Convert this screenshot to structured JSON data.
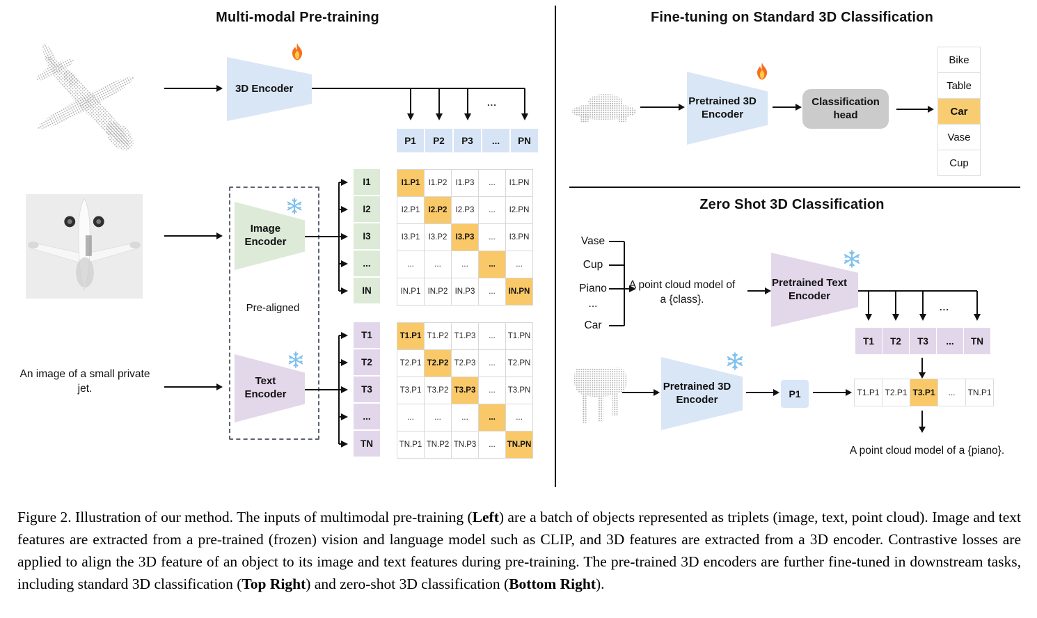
{
  "left": {
    "title": "Multi-modal Pre-training",
    "encoder_3d_label": "3D Encoder",
    "image_encoder_label": "Image Encoder",
    "text_encoder_label": "Text Encoder",
    "pre_aligned_label": "Pre-aligned",
    "image_caption": "An image of a small private jet.",
    "p_row": [
      "P1",
      "P2",
      "P3",
      "...",
      "PN"
    ],
    "p_row_ellipsis": "...",
    "i_col": [
      "I1",
      "I2",
      "I3",
      "...",
      "IN"
    ],
    "t_col": [
      "T1",
      "T2",
      "T3",
      "...",
      "TN"
    ],
    "image_matrix": [
      {
        "label": "I1.P1",
        "hl": true
      },
      {
        "label": "I1.P2"
      },
      {
        "label": "I1.P3"
      },
      {
        "label": "..."
      },
      {
        "label": "I1.PN"
      },
      {
        "label": "I2.P1"
      },
      {
        "label": "I2.P2",
        "hl": true
      },
      {
        "label": "I2.P3"
      },
      {
        "label": "..."
      },
      {
        "label": "I2.PN"
      },
      {
        "label": "I3.P1"
      },
      {
        "label": "I3.P2"
      },
      {
        "label": "I3.P3",
        "hl": true
      },
      {
        "label": "..."
      },
      {
        "label": "I3.PN"
      },
      {
        "label": "..."
      },
      {
        "label": "..."
      },
      {
        "label": "..."
      },
      {
        "label": "...",
        "hl": true
      },
      {
        "label": "..."
      },
      {
        "label": "IN.P1"
      },
      {
        "label": "IN.P2"
      },
      {
        "label": "IN.P3"
      },
      {
        "label": "..."
      },
      {
        "label": "IN.PN",
        "hl": true
      }
    ],
    "text_matrix": [
      {
        "label": "T1.P1",
        "hl": true
      },
      {
        "label": "T1.P2"
      },
      {
        "label": "T1.P3"
      },
      {
        "label": "..."
      },
      {
        "label": "T1.PN"
      },
      {
        "label": "T2.P1"
      },
      {
        "label": "T2.P2",
        "hl": true
      },
      {
        "label": "T2.P3"
      },
      {
        "label": "..."
      },
      {
        "label": "T2.PN"
      },
      {
        "label": "T3.P1"
      },
      {
        "label": "T3.P2"
      },
      {
        "label": "T3.P3",
        "hl": true
      },
      {
        "label": "..."
      },
      {
        "label": "T3.PN"
      },
      {
        "label": "..."
      },
      {
        "label": "..."
      },
      {
        "label": "..."
      },
      {
        "label": "...",
        "hl": true
      },
      {
        "label": "..."
      },
      {
        "label": "TN.P1"
      },
      {
        "label": "TN.P2"
      },
      {
        "label": "TN.P3"
      },
      {
        "label": "..."
      },
      {
        "label": "TN.PN",
        "hl": true
      }
    ]
  },
  "top_right": {
    "title": "Fine-tuning on Standard 3D Classification",
    "encoder_label": "Pretrained 3D Encoder",
    "head_label": "Classification head",
    "classes": [
      {
        "label": "Bike"
      },
      {
        "label": "Table"
      },
      {
        "label": "Car",
        "hl": true
      },
      {
        "label": "Vase"
      },
      {
        "label": "Cup"
      }
    ]
  },
  "bottom_right": {
    "title": "Zero Shot 3D Classification",
    "class_list": [
      "Vase",
      "Cup",
      "Piano",
      "...",
      "Car"
    ],
    "prompt_line1": "A point cloud model of",
    "prompt_line2": "a {class}.",
    "text_encoder_label": "Pretrained Text Encoder",
    "t_row": [
      "T1",
      "T2",
      "T3",
      "...",
      "TN"
    ],
    "branch_ellipsis": "...",
    "encoder_label": "Pretrained 3D Encoder",
    "p1_label": "P1",
    "sim_row": [
      {
        "label": "T1.P1"
      },
      {
        "label": "T2.P1"
      },
      {
        "label": "T3.P1",
        "hl": true
      },
      {
        "label": "..."
      },
      {
        "label": "TN.P1"
      }
    ],
    "result_text": "A point cloud model of a {piano}."
  },
  "caption": {
    "segments": [
      {
        "text": "Figure 2. Illustration of our method.  The inputs of multimodal pre-training ("
      },
      {
        "text": "Left",
        "bold": true
      },
      {
        "text": ") are a batch of objects represented as triplets (image, text, point cloud).  Image and text features are extracted from a pre-trained (frozen) vision and language model such as CLIP, and 3D features are extracted from a 3D encoder.  Contrastive losses are applied to align the 3D feature of an object to its image and text features during pre-training.  The pre-trained 3D encoders are further fine-tuned in downstream tasks, including standard 3D classification ("
      },
      {
        "text": "Top Right",
        "bold": true
      },
      {
        "text": ") and zero-shot 3D classification ("
      },
      {
        "text": "Bottom Right",
        "bold": true
      },
      {
        "text": ")."
      }
    ]
  },
  "icons": {
    "trainable": "flame-icon",
    "frozen": "snowflake-icon"
  },
  "colors": {
    "feature_blue": "#d7e4f5",
    "feature_green": "#dcead7",
    "feature_purple": "#e2d7ea",
    "highlight_orange": "#f9c868",
    "head_gray": "#cbcbcb",
    "point_cloud_gray": "#aeaeae"
  }
}
